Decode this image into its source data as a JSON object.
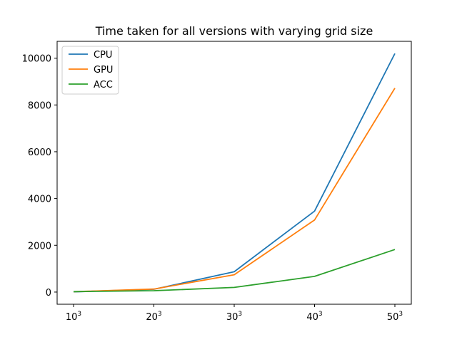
{
  "chart_data": {
    "type": "line",
    "title": "Time taken for all versions with varying grid size",
    "xlabel": "",
    "ylabel": "",
    "categories": [
      "10",
      "20",
      "30",
      "40",
      "50"
    ],
    "x_tick_exponent": "3",
    "series": [
      {
        "name": "CPU",
        "color": "#1f77b4",
        "values": [
          10,
          120,
          870,
          3460,
          10200
        ]
      },
      {
        "name": "GPU",
        "color": "#ff7f0e",
        "values": [
          15,
          130,
          740,
          3080,
          8720
        ]
      },
      {
        "name": "ACC",
        "color": "#2ca02c",
        "values": [
          20,
          60,
          200,
          670,
          1820
        ]
      }
    ],
    "yticks": [
      0,
      2000,
      4000,
      6000,
      8000,
      10000
    ],
    "ylim": [
      -520,
      10720
    ],
    "grid": false,
    "legend_position": "top-left"
  }
}
